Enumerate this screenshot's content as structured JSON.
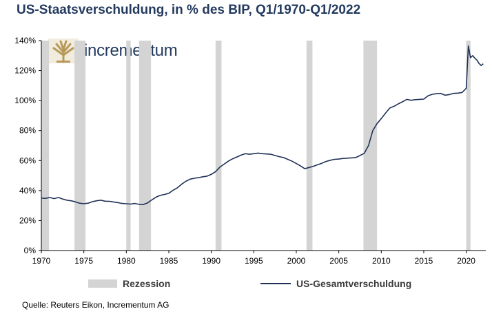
{
  "title": "US-Staatsverschuldung, in % des BIP, Q1/1970-Q1/2022",
  "source": "Quelle: Reuters Eikon, Incrementum AG",
  "logo": {
    "text": "incrementum",
    "icon": "tree-icon"
  },
  "colors": {
    "line": "#1f3156",
    "recession": "#d4d4d4",
    "title": "#233a5e"
  },
  "legend": {
    "recession_label": "Rezession",
    "series_label": "US-Gesamtverschuldung"
  },
  "chart_data": {
    "type": "line",
    "title": "US-Staatsverschuldung, in % des BIP, Q1/1970-Q1/2022",
    "xlabel": "",
    "ylabel": "",
    "xlim": [
      1970,
      2022.3
    ],
    "ylim": [
      0,
      140
    ],
    "x_ticks": [
      1970,
      1975,
      1980,
      1985,
      1990,
      1995,
      2000,
      2005,
      2010,
      2015,
      2020
    ],
    "y_ticks": [
      0,
      20,
      40,
      60,
      80,
      100,
      120,
      140
    ],
    "y_tick_format": "%",
    "grid": false,
    "legend_position": "bottom",
    "recessions": [
      [
        1969.9,
        1970.9
      ],
      [
        1973.9,
        1975.2
      ],
      [
        1980.0,
        1980.5
      ],
      [
        1981.5,
        1982.9
      ],
      [
        1990.5,
        1991.2
      ],
      [
        2001.2,
        2001.9
      ],
      [
        2007.9,
        2009.5
      ],
      [
        2020.0,
        2020.5
      ]
    ],
    "series": [
      {
        "name": "US-Gesamtverschuldung",
        "x": [
          1970,
          1970.5,
          1971,
          1971.5,
          1972,
          1972.5,
          1973,
          1973.5,
          1974,
          1974.5,
          1975,
          1975.5,
          1976,
          1976.5,
          1977,
          1977.5,
          1978,
          1978.5,
          1979,
          1979.5,
          1980,
          1980.5,
          1981,
          1981.5,
          1982,
          1982.5,
          1983,
          1983.5,
          1984,
          1984.5,
          1985,
          1985.5,
          1986,
          1986.5,
          1987,
          1987.5,
          1988,
          1988.5,
          1989,
          1989.5,
          1990,
          1990.5,
          1991,
          1991.5,
          1992,
          1992.5,
          1993,
          1993.5,
          1994,
          1994.5,
          1995,
          1995.5,
          1996,
          1996.5,
          1997,
          1997.5,
          1998,
          1998.5,
          1999,
          1999.5,
          2000,
          2000.5,
          2001,
          2001.5,
          2002,
          2002.5,
          2003,
          2003.5,
          2004,
          2004.5,
          2005,
          2005.5,
          2006,
          2006.5,
          2007,
          2007.5,
          2008,
          2008.5,
          2009,
          2009.5,
          2010,
          2010.5,
          2011,
          2011.5,
          2012,
          2012.5,
          2013,
          2013.5,
          2014,
          2014.5,
          2015,
          2015.5,
          2016,
          2016.5,
          2017,
          2017.5,
          2018,
          2018.5,
          2019,
          2019.5,
          2020,
          2020.25,
          2020.5,
          2020.75,
          2021,
          2021.25,
          2021.5,
          2021.75,
          2022
        ],
        "values": [
          35,
          34.8,
          35.4,
          34.6,
          35.4,
          34.4,
          33.6,
          33.2,
          32.5,
          31.6,
          31.2,
          31.6,
          32.6,
          33.2,
          33.6,
          32.9,
          32.8,
          32.4,
          32.0,
          31.4,
          31.2,
          31.0,
          31.4,
          30.8,
          30.7,
          31.8,
          33.8,
          35.6,
          36.8,
          37.4,
          38.2,
          40.2,
          41.8,
          44.2,
          46.2,
          47.6,
          48.2,
          48.6,
          49.2,
          49.6,
          50.8,
          52.6,
          55.6,
          57.6,
          59.6,
          61.2,
          62.4,
          63.6,
          64.6,
          64.2,
          64.6,
          65.0,
          64.6,
          64.4,
          64.2,
          63.4,
          62.6,
          62.0,
          60.8,
          59.6,
          58.0,
          56.4,
          54.6,
          55.4,
          56.2,
          57.2,
          58.2,
          59.4,
          60.2,
          60.8,
          61.0,
          61.4,
          61.6,
          61.8,
          62.0,
          63.4,
          64.8,
          70.0,
          80.0,
          84.6,
          88.0,
          91.6,
          95.0,
          96.2,
          97.8,
          99.2,
          100.8,
          100.2,
          100.6,
          100.8,
          101.0,
          103.2,
          104.2,
          104.6,
          104.8,
          103.6,
          104.0,
          104.8,
          105.0,
          105.4,
          108.2,
          136.4,
          128.6,
          130.0,
          128.4,
          127.0,
          124.8,
          123.4,
          124.6
        ]
      }
    ]
  }
}
